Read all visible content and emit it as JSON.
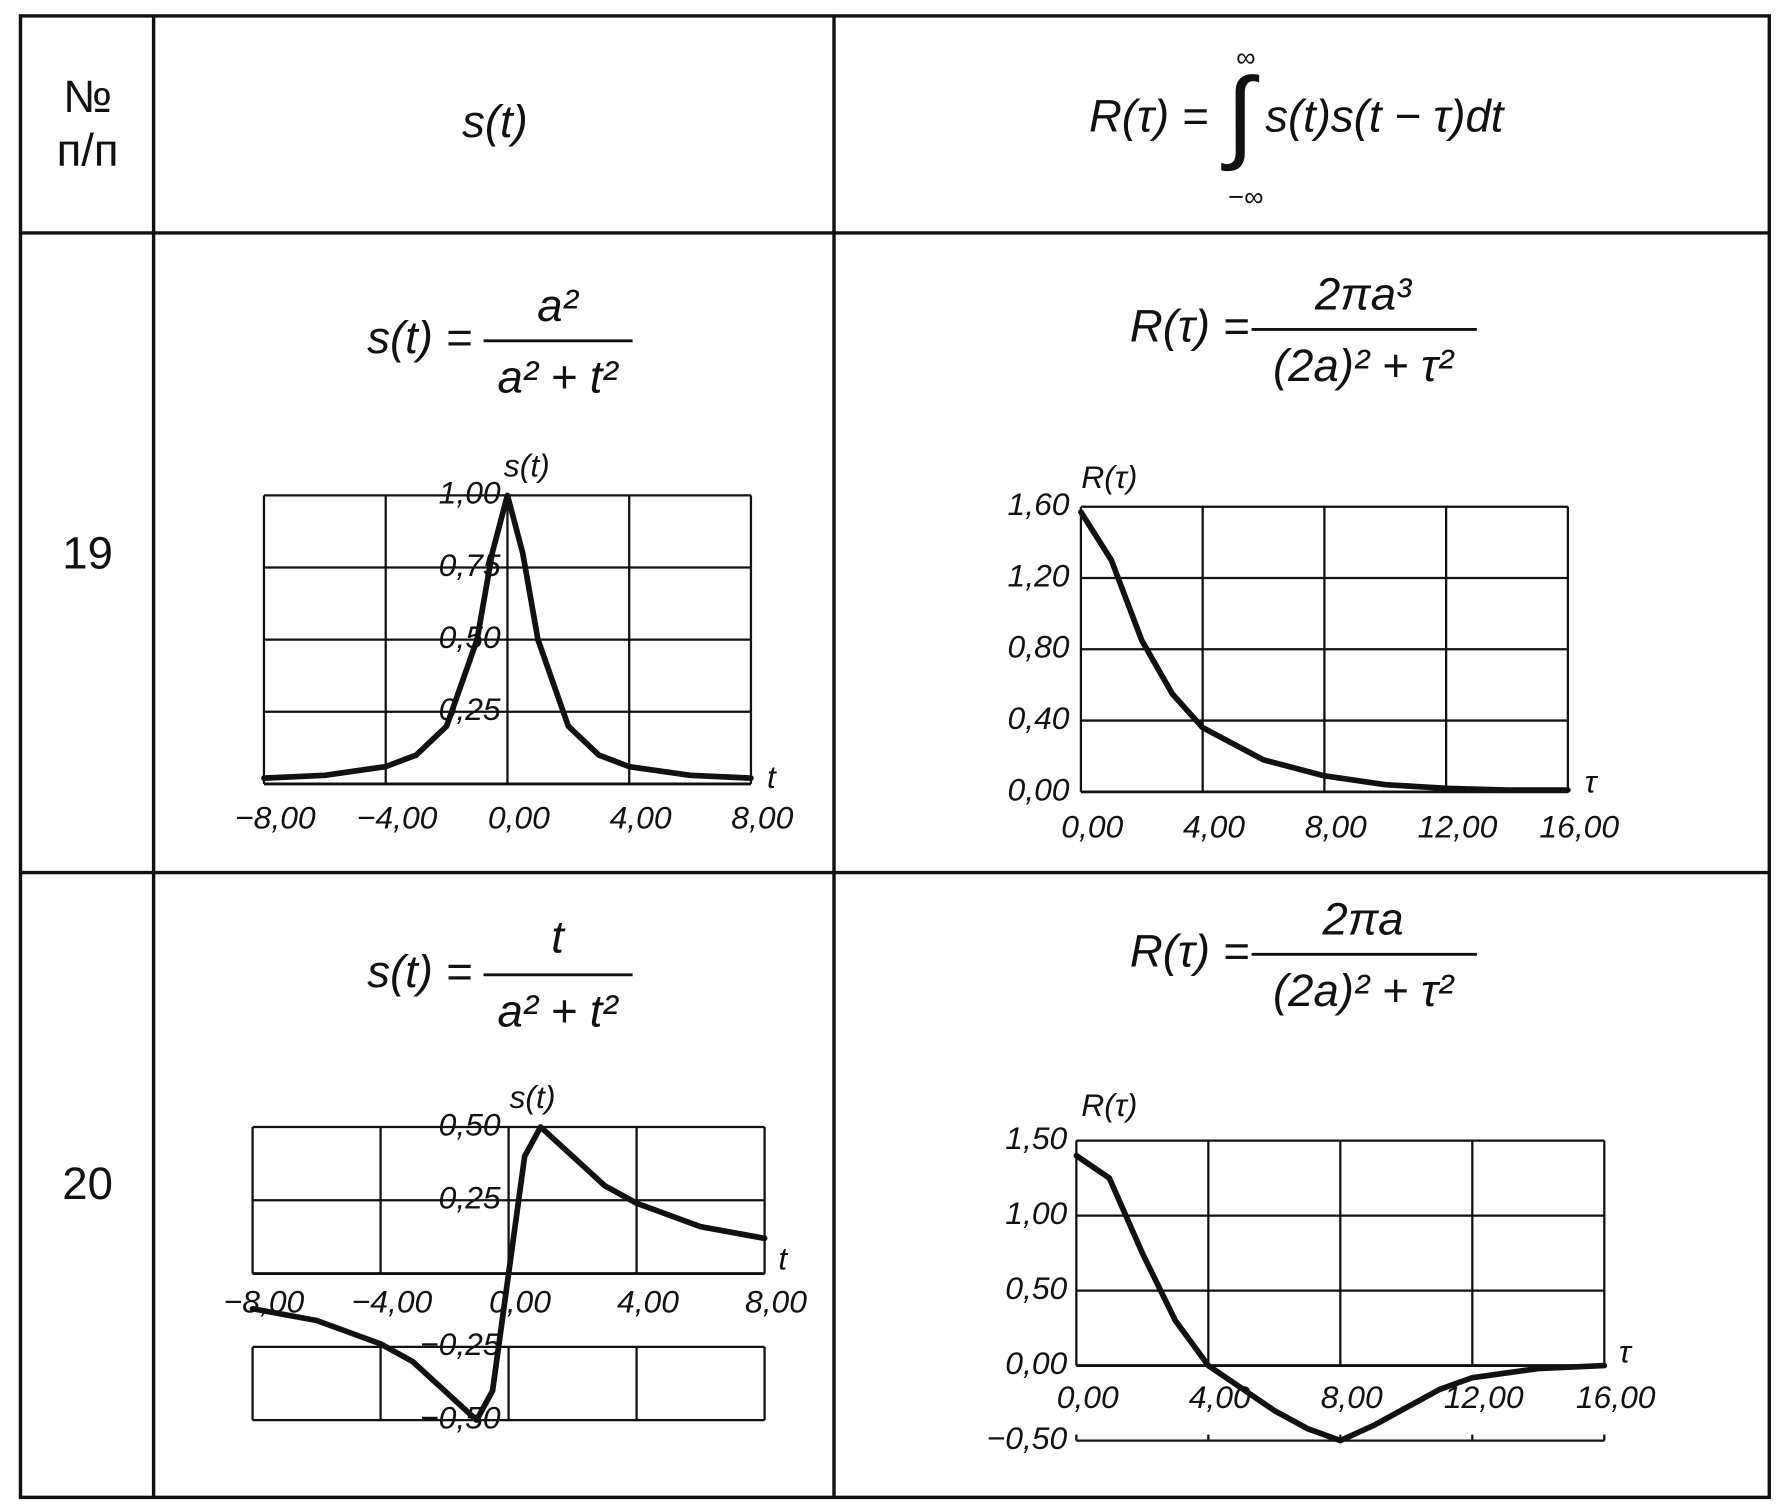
{
  "header": {
    "number": [
      "№",
      "п/п"
    ],
    "signal": "s(t)",
    "formula": {
      "lhs": "R(τ) =",
      "integral": "∫",
      "upper": "∞",
      "lower": "−∞",
      "integrand": "s(t)s(t − τ)dt"
    }
  },
  "rows": [
    {
      "number": "19",
      "signal": {
        "formula": {
          "lhs": "s(t) =",
          "num": "a²",
          "den": "a² + t²"
        },
        "chart_data": {
          "type": "line",
          "y_label": "s(t)",
          "x_label": "t",
          "color": "#111111",
          "x": [
            -8,
            -6,
            -4,
            -3,
            -2,
            -1,
            -0.5,
            0,
            0.5,
            1,
            2,
            3,
            4,
            6,
            8
          ],
          "values": [
            0.02,
            0.03,
            0.06,
            0.1,
            0.2,
            0.5,
            0.8,
            1,
            0.8,
            0.5,
            0.2,
            0.1,
            0.06,
            0.03,
            0.02
          ],
          "xlim": [
            -8,
            8
          ],
          "ylim": [
            0,
            1
          ],
          "xticks": [
            {
              "value": -8,
              "label": "−8,00"
            },
            {
              "value": -4,
              "label": "−4,00"
            },
            {
              "value": 0,
              "label": "0,00"
            },
            {
              "value": 4,
              "label": "4,00"
            },
            {
              "value": 8,
              "label": "8,00"
            }
          ],
          "yticks": [
            {
              "value": 0.25,
              "label": "0,25"
            },
            {
              "value": 0.5,
              "label": "0,50"
            },
            {
              "value": 0.75,
              "label": "0,75"
            },
            {
              "value": 1,
              "label": "1,00"
            }
          ],
          "grid": true
        }
      },
      "correlation": {
        "formula": {
          "lhs": "R(τ) =",
          "num": "2πa³",
          "den": "(2a)² + τ²"
        },
        "chart_data": {
          "type": "line",
          "y_label": "R(τ)",
          "x_label": "τ",
          "color": "#111111",
          "x": [
            0,
            1,
            2,
            3,
            4,
            6,
            8,
            10,
            12,
            14,
            16
          ],
          "values": [
            1.57,
            1.3,
            0.85,
            0.55,
            0.36,
            0.18,
            0.09,
            0.04,
            0.02,
            0.01,
            0.01
          ],
          "xlim": [
            0,
            16
          ],
          "ylim": [
            0,
            1.6
          ],
          "xticks": [
            {
              "value": 0,
              "label": "0,00"
            },
            {
              "value": 4,
              "label": "4,00"
            },
            {
              "value": 8,
              "label": "8,00"
            },
            {
              "value": 12,
              "label": "12,00"
            },
            {
              "value": 16,
              "label": "16,00"
            }
          ],
          "yticks": [
            {
              "value": 0,
              "label": "0,00"
            },
            {
              "value": 0.4,
              "label": "0,40"
            },
            {
              "value": 0.8,
              "label": "0,80"
            },
            {
              "value": 1.2,
              "label": "1,20"
            },
            {
              "value": 1.6,
              "label": "1,60"
            }
          ],
          "grid": true
        }
      }
    },
    {
      "number": "20",
      "signal": {
        "formula": {
          "lhs": "s(t) =",
          "num": "t",
          "den": "a² + t²"
        },
        "chart_data": {
          "type": "line",
          "y_label": "s(t)",
          "x_label": "t",
          "color": "#111111",
          "x": [
            -8,
            -6,
            -4,
            -3,
            -2,
            -1,
            -0.5,
            0,
            0.5,
            1,
            2,
            3,
            4,
            6,
            8
          ],
          "values": [
            -0.12,
            -0.16,
            -0.24,
            -0.3,
            -0.4,
            -0.5,
            -0.4,
            0,
            0.4,
            0.5,
            0.4,
            0.3,
            0.24,
            0.16,
            0.12
          ],
          "xlim": [
            -8,
            8
          ],
          "ylim": [
            -0.5,
            0.5
          ],
          "xticks": [
            {
              "value": -8,
              "label": "−8,00"
            },
            {
              "value": -4,
              "label": "−4,00"
            },
            {
              "value": 0,
              "label": "0,00"
            },
            {
              "value": 4,
              "label": "4,00"
            },
            {
              "value": 8,
              "label": "8,00"
            }
          ],
          "yticks": [
            {
              "value": -0.5,
              "label": "−0,50"
            },
            {
              "value": -0.25,
              "label": "−0,25"
            },
            {
              "value": 0.25,
              "label": "0,25"
            },
            {
              "value": 0.5,
              "label": "0,50"
            }
          ],
          "grid": true
        }
      },
      "correlation": {
        "formula": {
          "lhs": "R(τ) =",
          "num": "2πa",
          "den": "(2a)² + τ²"
        },
        "chart_data": {
          "type": "line",
          "y_label": "R(τ)",
          "x_label": "τ",
          "color": "#111111",
          "x": [
            0,
            1,
            2,
            3,
            4,
            5,
            6,
            7,
            8,
            9,
            10,
            11,
            12,
            14,
            16
          ],
          "values": [
            1.4,
            1.25,
            0.75,
            0.3,
            0,
            -0.15,
            -0.3,
            -0.42,
            -0.5,
            -0.4,
            -0.28,
            -0.16,
            -0.08,
            -0.02,
            0
          ],
          "xlim": [
            0,
            16
          ],
          "ylim": [
            -0.5,
            1.5
          ],
          "xticks": [
            {
              "value": 0,
              "label": "0,00"
            },
            {
              "value": 4,
              "label": "4,00"
            },
            {
              "value": 8,
              "label": "8,00"
            },
            {
              "value": 12,
              "label": "12,00"
            },
            {
              "value": 16,
              "label": "16,00"
            }
          ],
          "yticks": [
            {
              "value": -0.5,
              "label": "−0,50"
            },
            {
              "value": 0,
              "label": "0,00"
            },
            {
              "value": 0.5,
              "label": "0,50"
            },
            {
              "value": 1,
              "label": "1,00"
            },
            {
              "value": 1.5,
              "label": "1,50"
            }
          ],
          "grid": true
        }
      }
    }
  ]
}
